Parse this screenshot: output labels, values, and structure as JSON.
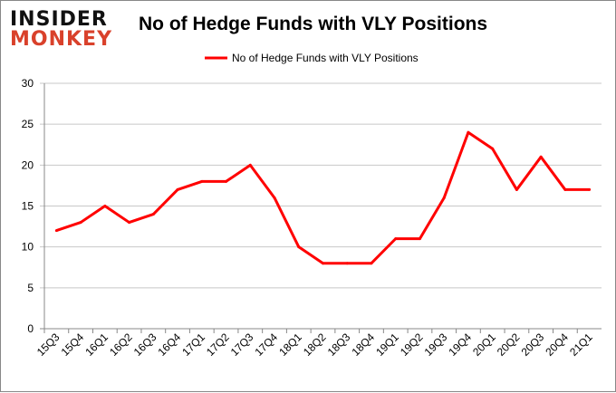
{
  "logo": {
    "line1": "INSIDER",
    "line2": "MONKEY"
  },
  "chart_data": {
    "type": "line",
    "title": "No of Hedge Funds with VLY Positions",
    "categories": [
      "15Q3",
      "15Q4",
      "16Q1",
      "16Q2",
      "16Q3",
      "16Q4",
      "17Q1",
      "17Q2",
      "17Q3",
      "17Q4",
      "18Q1",
      "18Q2",
      "18Q3",
      "18Q4",
      "19Q1",
      "19Q2",
      "19Q3",
      "19Q4",
      "20Q1",
      "20Q2",
      "20Q3",
      "20Q4",
      "21Q1"
    ],
    "series": [
      {
        "name": "No of Hedge Funds with VLY Positions",
        "color": "#ff0000",
        "values": [
          12,
          13,
          15,
          13,
          14,
          17,
          18,
          18,
          20,
          16,
          10,
          8,
          8,
          8,
          11,
          11,
          16,
          24,
          22,
          17,
          21,
          17,
          17
        ]
      }
    ],
    "ylim": [
      0,
      30
    ],
    "yticks": [
      0,
      5,
      10,
      15,
      20,
      25,
      30
    ],
    "grid": true,
    "legend": "top"
  }
}
